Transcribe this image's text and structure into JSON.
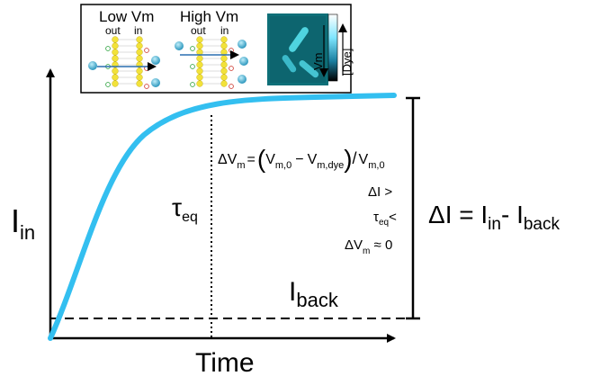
{
  "axes": {
    "y_label_main": "I",
    "y_label_sub": "in",
    "x_label": "Time"
  },
  "tau": {
    "main": "τ",
    "sub": "eq"
  },
  "iback": {
    "main": "I",
    "sub": "back"
  },
  "formula": {
    "lhs_main": "ΔV",
    "lhs_sub": "m",
    "eq": "=",
    "open": "(",
    "a_main": "V",
    "a_sub": "m,0",
    "minus": "−",
    "b_main": "V",
    "b_sub": "m,dye",
    "close": ")",
    "slash": "/",
    "c_main": "V",
    "c_sub": "m,0"
  },
  "conditions": {
    "line1": "ΔI >",
    "line2_main": "τ",
    "line2_sub": "eq",
    "line2_tail": "<",
    "line3_main": "ΔV",
    "line3_sub": "m",
    "line3_tail": " ≈ 0"
  },
  "delta_eq": {
    "lhs": "ΔI = I",
    "sub1": "in",
    "mid": "- I",
    "sub2": "back"
  },
  "inset": {
    "low_vm": "Low Vm",
    "high_vm": "High Vm",
    "out1": "out",
    "in1": "in",
    "out2": "out",
    "in2": "in",
    "vm_label": "Vm",
    "dye_label": "[Dye]"
  },
  "colors": {
    "curve": "#33bff0",
    "ion": "#2a9fc4",
    "lipid": "#f2e23a",
    "micrograph": "#0e6f78"
  }
}
